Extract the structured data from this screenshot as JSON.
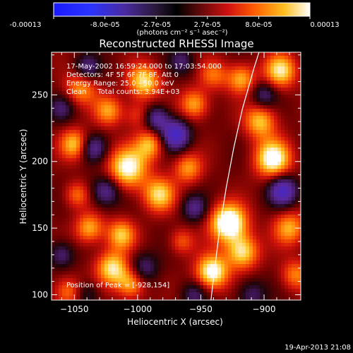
{
  "colorbar": {
    "tick_labels": [
      "-0.00013",
      "-8.0e-05",
      "-2.7e-05",
      "2.7e-05",
      "8.0e-05",
      "0.00013"
    ],
    "unit_label": "(photons cm⁻² s⁻¹ asec⁻²)",
    "range": [
      -0.00013,
      0.00013
    ]
  },
  "chart_data": {
    "type": "heatmap",
    "title": "Reconstructed RHESSI Image",
    "xlabel": "Heliocentric X (arcsec)",
    "ylabel": "Heliocentric Y (arcsec)",
    "xlim": [
      -1068,
      -871
    ],
    "ylim": [
      96,
      282
    ],
    "x_ticks": [
      -1050,
      -1000,
      -950,
      -900
    ],
    "x_tick_labels": [
      "−1050",
      "−1000",
      "−950",
      "−900"
    ],
    "y_ticks": [
      100,
      150,
      200,
      250
    ],
    "y_tick_labels": [
      "100",
      "150",
      "200",
      "250"
    ],
    "annotations": [
      "17-May-2002 16:59:24.000 to 17:03:54.000",
      "Detectors: 4F 5F 6F 7F 8F, Att 0",
      "Energy Range: 25.0 - 50.0 keV",
      "Clean     Total counts: 3.94E+03"
    ],
    "peak_label": "Position of Peak = [-928,154]",
    "peak": [
      -928,
      154
    ],
    "limb_curve": [
      [
        -942,
        96
      ],
      [
        -939,
        120
      ],
      [
        -935,
        150
      ],
      [
        -930,
        180
      ],
      [
        -924,
        210
      ],
      [
        -917,
        240
      ],
      [
        -908,
        270
      ],
      [
        -904,
        282
      ]
    ],
    "sources": [
      [
        -928,
        154,
        1.0,
        10
      ],
      [
        -941,
        117,
        0.85,
        9
      ],
      [
        -917,
        132,
        0.7,
        9
      ],
      [
        -893,
        202,
        0.85,
        10
      ],
      [
        -903,
        230,
        0.6,
        9
      ],
      [
        -887,
        268,
        0.7,
        9
      ],
      [
        -918,
        262,
        0.55,
        8
      ],
      [
        -1008,
        195,
        0.8,
        11
      ],
      [
        -990,
        213,
        0.55,
        8
      ],
      [
        -983,
        175,
        0.65,
        9
      ],
      [
        -1013,
        145,
        0.6,
        8
      ],
      [
        -1050,
        213,
        0.6,
        8
      ],
      [
        -1038,
        150,
        0.55,
        8
      ],
      [
        -995,
        260,
        0.7,
        9
      ],
      [
        -1023,
        238,
        0.5,
        8
      ],
      [
        -955,
        243,
        0.55,
        8
      ],
      [
        -1045,
        255,
        0.5,
        9
      ],
      [
        -1020,
        120,
        0.7,
        9
      ],
      [
        -1005,
        108,
        0.55,
        8
      ],
      [
        -1055,
        102,
        0.45,
        8
      ],
      [
        -1048,
        175,
        0.4,
        7
      ],
      [
        -960,
        195,
        0.5,
        8
      ],
      [
        -940,
        265,
        0.4,
        8
      ],
      [
        -880,
        150,
        0.55,
        9
      ],
      [
        -875,
        115,
        0.45,
        8
      ],
      [
        -965,
        140,
        0.35,
        7
      ],
      [
        -1000,
        235,
        0.3,
        7
      ],
      [
        -970,
        220,
        -0.8,
        8
      ],
      [
        -1025,
        178,
        -0.55,
        8
      ],
      [
        -985,
        232,
        -0.55,
        7
      ],
      [
        -1035,
        210,
        -0.5,
        7
      ],
      [
        -885,
        178,
        -0.75,
        8
      ],
      [
        -955,
        165,
        -0.45,
        7
      ],
      [
        -995,
        120,
        -0.4,
        8
      ],
      [
        -1060,
        130,
        -0.4,
        7
      ],
      [
        -1040,
        270,
        -0.45,
        7
      ],
      [
        -965,
        275,
        -0.35,
        7
      ],
      [
        -900,
        250,
        -0.4,
        7
      ],
      [
        -955,
        100,
        -0.35,
        7
      ],
      [
        -1040,
        100,
        -0.3,
        7
      ],
      [
        -910,
        100,
        -0.35,
        8
      ],
      [
        -1060,
        240,
        -0.35,
        7
      ]
    ]
  },
  "footer": {
    "timestamp": "19-Apr-2013 21:08"
  }
}
